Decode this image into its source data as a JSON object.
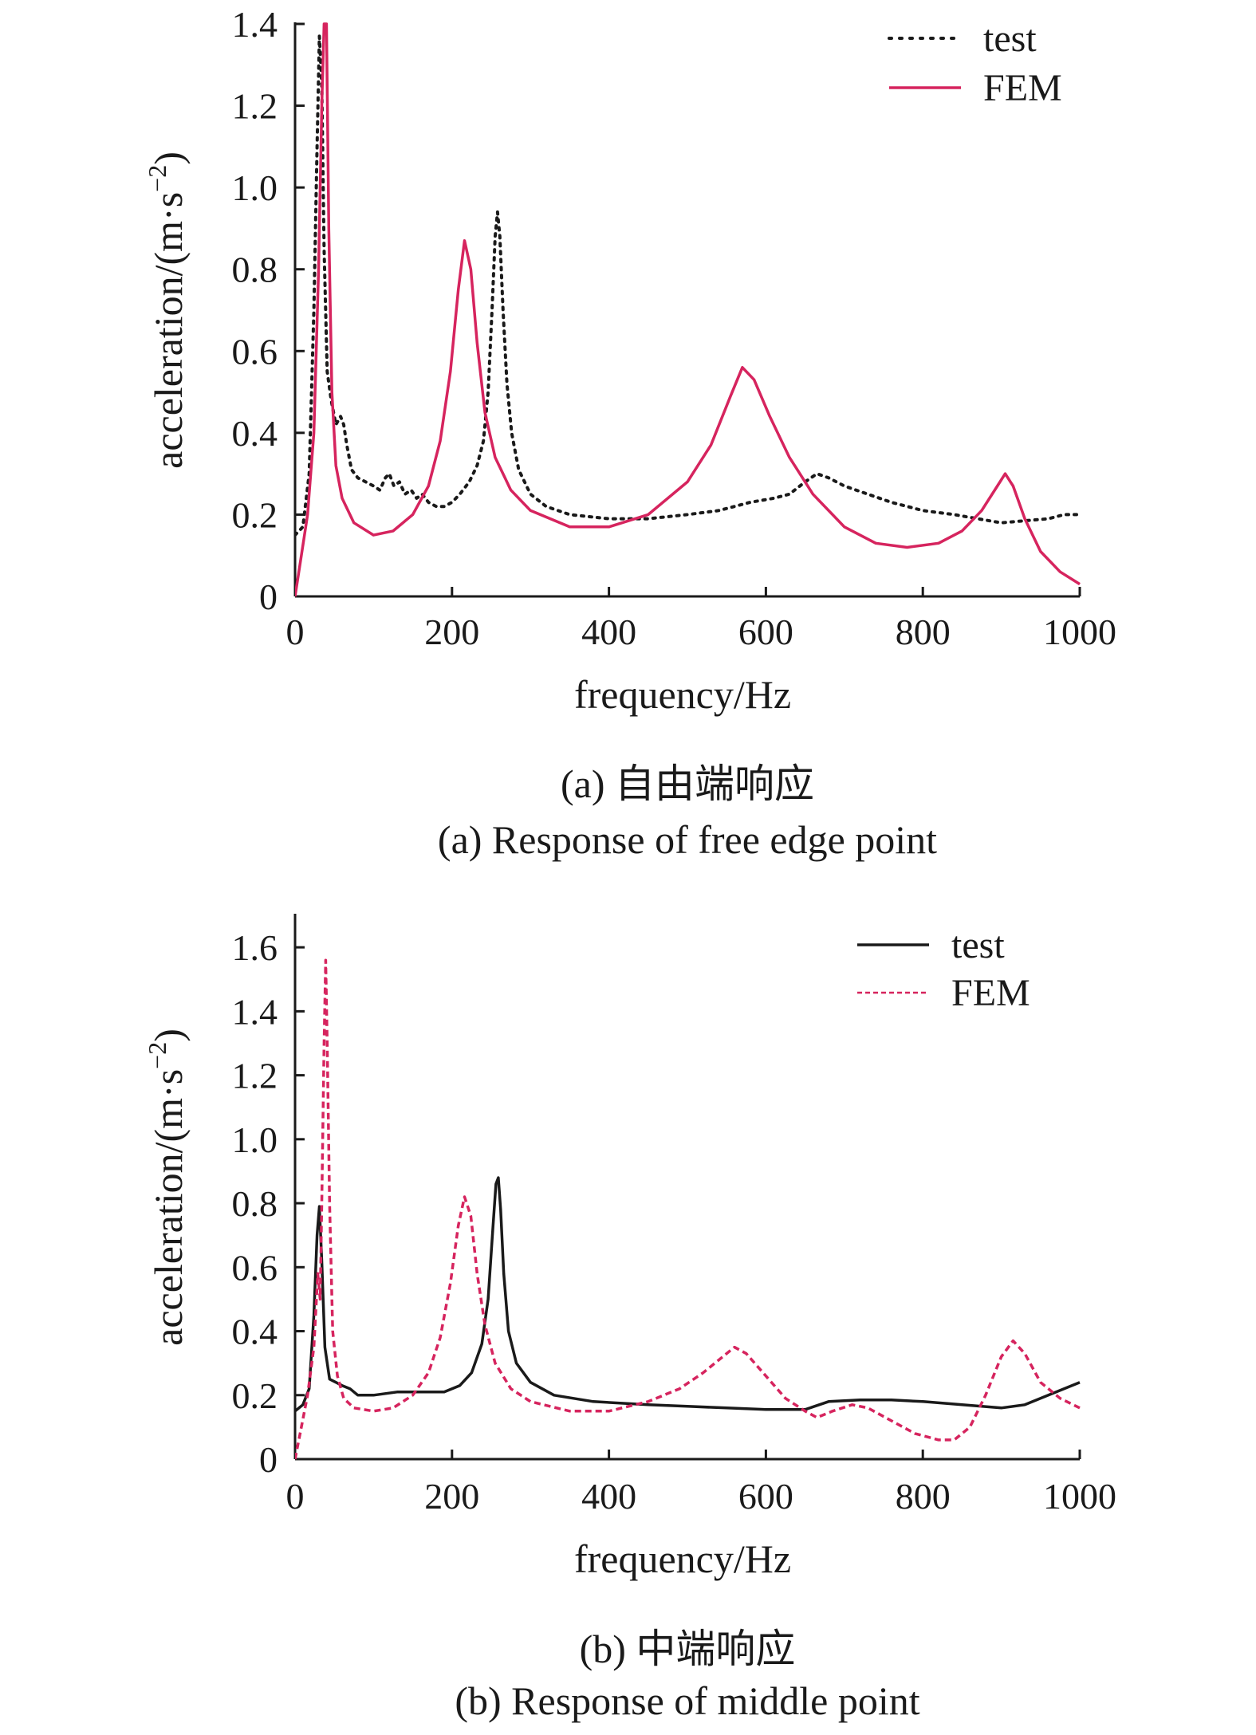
{
  "chart_data": [
    {
      "type": "line",
      "caption_cn": "(a) 自由端响应",
      "caption_en": "(a) Response of free edge point",
      "xlabel": "frequency/Hz",
      "ylabel": "acceleration/(m·s",
      "ylabel_exp": "−2",
      "ylabel_close": ")",
      "xlim": [
        0,
        1000
      ],
      "ylim": [
        0,
        1.4
      ],
      "xticks": [
        0,
        200,
        400,
        600,
        800,
        1000
      ],
      "xtick_labels": [
        "0",
        "200",
        "400",
        "600",
        "800",
        "1000"
      ],
      "yticks": [
        0,
        0.2,
        0.4,
        0.6,
        0.8,
        1.0,
        1.2,
        1.4
      ],
      "ytick_labels": [
        "0",
        "0.2",
        "0.4",
        "0.6",
        "0.8",
        "1.0",
        "1.2",
        "1.4"
      ],
      "legend_position": "top-right",
      "series": [
        {
          "name": "test",
          "color": "#1a1a1a",
          "style": "dotted",
          "points": [
            [
              0,
              0.15
            ],
            [
              10,
              0.17
            ],
            [
              18,
              0.3
            ],
            [
              24,
              0.7
            ],
            [
              28,
              1.1
            ],
            [
              31,
              1.37
            ],
            [
              34,
              1.25
            ],
            [
              37,
              0.85
            ],
            [
              41,
              0.55
            ],
            [
              46,
              0.48
            ],
            [
              52,
              0.42
            ],
            [
              58,
              0.44
            ],
            [
              62,
              0.42
            ],
            [
              66,
              0.37
            ],
            [
              72,
              0.31
            ],
            [
              80,
              0.29
            ],
            [
              90,
              0.28
            ],
            [
              100,
              0.27
            ],
            [
              108,
              0.26
            ],
            [
              115,
              0.29
            ],
            [
              120,
              0.3
            ],
            [
              126,
              0.27
            ],
            [
              133,
              0.28
            ],
            [
              140,
              0.25
            ],
            [
              148,
              0.26
            ],
            [
              155,
              0.24
            ],
            [
              162,
              0.25
            ],
            [
              170,
              0.23
            ],
            [
              180,
              0.22
            ],
            [
              190,
              0.22
            ],
            [
              200,
              0.23
            ],
            [
              210,
              0.25
            ],
            [
              222,
              0.28
            ],
            [
              232,
              0.32
            ],
            [
              240,
              0.38
            ],
            [
              246,
              0.5
            ],
            [
              251,
              0.7
            ],
            [
              255,
              0.88
            ],
            [
              258,
              0.94
            ],
            [
              261,
              0.88
            ],
            [
              265,
              0.7
            ],
            [
              270,
              0.52
            ],
            [
              276,
              0.4
            ],
            [
              285,
              0.31
            ],
            [
              300,
              0.25
            ],
            [
              320,
              0.22
            ],
            [
              350,
              0.2
            ],
            [
              400,
              0.19
            ],
            [
              450,
              0.19
            ],
            [
              500,
              0.2
            ],
            [
              540,
              0.21
            ],
            [
              580,
              0.23
            ],
            [
              610,
              0.24
            ],
            [
              630,
              0.25
            ],
            [
              650,
              0.28
            ],
            [
              665,
              0.3
            ],
            [
              680,
              0.29
            ],
            [
              700,
              0.27
            ],
            [
              730,
              0.25
            ],
            [
              760,
              0.23
            ],
            [
              800,
              0.21
            ],
            [
              840,
              0.2
            ],
            [
              870,
              0.19
            ],
            [
              900,
              0.18
            ],
            [
              930,
              0.185
            ],
            [
              960,
              0.19
            ],
            [
              980,
              0.2
            ],
            [
              1000,
              0.2
            ]
          ]
        },
        {
          "name": "FEM",
          "color": "#d6245e",
          "style": "solid",
          "points": [
            [
              0,
              0.0
            ],
            [
              8,
              0.1
            ],
            [
              16,
              0.2
            ],
            [
              24,
              0.4
            ],
            [
              30,
              0.8
            ],
            [
              34,
              1.2
            ],
            [
              37,
              1.4
            ],
            [
              40,
              1.4
            ],
            [
              43,
              0.9
            ],
            [
              47,
              0.5
            ],
            [
              52,
              0.32
            ],
            [
              60,
              0.24
            ],
            [
              75,
              0.18
            ],
            [
              100,
              0.15
            ],
            [
              125,
              0.16
            ],
            [
              150,
              0.2
            ],
            [
              170,
              0.27
            ],
            [
              185,
              0.38
            ],
            [
              198,
              0.55
            ],
            [
              208,
              0.75
            ],
            [
              216,
              0.87
            ],
            [
              224,
              0.8
            ],
            [
              232,
              0.62
            ],
            [
              242,
              0.45
            ],
            [
              255,
              0.34
            ],
            [
              275,
              0.26
            ],
            [
              300,
              0.21
            ],
            [
              350,
              0.17
            ],
            [
              400,
              0.17
            ],
            [
              450,
              0.2
            ],
            [
              500,
              0.28
            ],
            [
              530,
              0.37
            ],
            [
              555,
              0.49
            ],
            [
              570,
              0.56
            ],
            [
              585,
              0.53
            ],
            [
              605,
              0.44
            ],
            [
              630,
              0.34
            ],
            [
              660,
              0.25
            ],
            [
              700,
              0.17
            ],
            [
              740,
              0.13
            ],
            [
              780,
              0.12
            ],
            [
              820,
              0.13
            ],
            [
              850,
              0.16
            ],
            [
              875,
              0.21
            ],
            [
              895,
              0.27
            ],
            [
              905,
              0.3
            ],
            [
              915,
              0.27
            ],
            [
              930,
              0.19
            ],
            [
              950,
              0.11
            ],
            [
              975,
              0.06
            ],
            [
              1000,
              0.03
            ]
          ]
        }
      ]
    },
    {
      "type": "line",
      "caption_cn": "(b) 中端响应",
      "caption_en": "(b) Response of middle point",
      "xlabel": "frequency/Hz",
      "ylabel": "acceleration/(m·s",
      "ylabel_exp": "−2",
      "ylabel_close": ")",
      "xlim": [
        0,
        1000
      ],
      "ylim": [
        0,
        1.7
      ],
      "xticks": [
        0,
        200,
        400,
        600,
        800,
        1000
      ],
      "xtick_labels": [
        "0",
        "200",
        "400",
        "600",
        "800",
        "1000"
      ],
      "yticks": [
        0,
        0.2,
        0.4,
        0.6,
        0.8,
        1.0,
        1.2,
        1.4,
        1.6
      ],
      "ytick_labels": [
        "0",
        "0.2",
        "0.4",
        "0.6",
        "0.8",
        "1.0",
        "1.2",
        "1.4",
        "1.6"
      ],
      "legend_position": "top-right",
      "series": [
        {
          "name": "test",
          "color": "#1a1a1a",
          "style": "solid",
          "points": [
            [
              0,
              0.15
            ],
            [
              10,
              0.17
            ],
            [
              18,
              0.22
            ],
            [
              24,
              0.45
            ],
            [
              28,
              0.7
            ],
            [
              31,
              0.79
            ],
            [
              34,
              0.62
            ],
            [
              38,
              0.35
            ],
            [
              44,
              0.25
            ],
            [
              52,
              0.24
            ],
            [
              60,
              0.23
            ],
            [
              70,
              0.22
            ],
            [
              80,
              0.2
            ],
            [
              100,
              0.2
            ],
            [
              130,
              0.21
            ],
            [
              160,
              0.21
            ],
            [
              190,
              0.21
            ],
            [
              210,
              0.23
            ],
            [
              225,
              0.27
            ],
            [
              238,
              0.36
            ],
            [
              246,
              0.5
            ],
            [
              252,
              0.72
            ],
            [
              256,
              0.86
            ],
            [
              259,
              0.88
            ],
            [
              262,
              0.78
            ],
            [
              266,
              0.58
            ],
            [
              272,
              0.4
            ],
            [
              282,
              0.3
            ],
            [
              300,
              0.24
            ],
            [
              330,
              0.2
            ],
            [
              380,
              0.18
            ],
            [
              450,
              0.17
            ],
            [
              500,
              0.165
            ],
            [
              550,
              0.16
            ],
            [
              600,
              0.155
            ],
            [
              650,
              0.155
            ],
            [
              680,
              0.18
            ],
            [
              720,
              0.185
            ],
            [
              760,
              0.185
            ],
            [
              800,
              0.18
            ],
            [
              850,
              0.17
            ],
            [
              900,
              0.16
            ],
            [
              930,
              0.17
            ],
            [
              960,
              0.2
            ],
            [
              980,
              0.22
            ],
            [
              1000,
              0.24
            ]
          ]
        },
        {
          "name": "FEM",
          "color": "#d6245e",
          "style": "dashed",
          "points": [
            [
              0,
              0.0
            ],
            [
              8,
              0.1
            ],
            [
              16,
              0.2
            ],
            [
              24,
              0.35
            ],
            [
              29,
              0.58
            ],
            [
              32,
              0.5
            ],
            [
              34,
              0.8
            ],
            [
              37,
              1.3
            ],
            [
              39,
              1.56
            ],
            [
              41,
              1.3
            ],
            [
              44,
              0.8
            ],
            [
              48,
              0.4
            ],
            [
              54,
              0.26
            ],
            [
              62,
              0.19
            ],
            [
              75,
              0.16
            ],
            [
              100,
              0.15
            ],
            [
              125,
              0.16
            ],
            [
              150,
              0.2
            ],
            [
              170,
              0.27
            ],
            [
              185,
              0.38
            ],
            [
              198,
              0.55
            ],
            [
              208,
              0.73
            ],
            [
              216,
              0.82
            ],
            [
              224,
              0.76
            ],
            [
              232,
              0.58
            ],
            [
              242,
              0.42
            ],
            [
              255,
              0.3
            ],
            [
              275,
              0.22
            ],
            [
              300,
              0.18
            ],
            [
              350,
              0.15
            ],
            [
              400,
              0.15
            ],
            [
              450,
              0.18
            ],
            [
              490,
              0.22
            ],
            [
              520,
              0.27
            ],
            [
              545,
              0.32
            ],
            [
              560,
              0.35
            ],
            [
              575,
              0.33
            ],
            [
              600,
              0.26
            ],
            [
              625,
              0.19
            ],
            [
              650,
              0.15
            ],
            [
              665,
              0.13
            ],
            [
              685,
              0.15
            ],
            [
              710,
              0.17
            ],
            [
              730,
              0.16
            ],
            [
              760,
              0.12
            ],
            [
              790,
              0.08
            ],
            [
              820,
              0.06
            ],
            [
              840,
              0.06
            ],
            [
              860,
              0.1
            ],
            [
              880,
              0.2
            ],
            [
              900,
              0.32
            ],
            [
              915,
              0.37
            ],
            [
              930,
              0.33
            ],
            [
              950,
              0.24
            ],
            [
              975,
              0.19
            ],
            [
              1000,
              0.16
            ]
          ]
        }
      ]
    }
  ]
}
